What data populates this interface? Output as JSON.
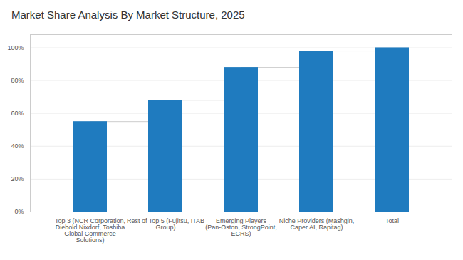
{
  "chart_data": {
    "type": "bar",
    "title": "Market Share Analysis By Market Structure, 2025",
    "categories": [
      "Top 3 (NCR Corporation,\nDiebold Nixdorf, Toshiba\nGlobal Commerce\nSolutions)",
      "Rest of Top 5 (Fujitsu, ITAB\nGroup)",
      "Emerging Players\n(Pan-Oston, StrongPoint,\nECRS)",
      "Niche Providers (Mashgin,\nCaper AI, Rapitag)",
      "Total"
    ],
    "values": [
      55,
      68,
      88,
      98,
      100
    ],
    "color": "#1f7bbf",
    "ylim": [
      0,
      108
    ],
    "yticks": [
      {
        "value": 0,
        "label": "0%"
      },
      {
        "value": 20,
        "label": "20%"
      },
      {
        "value": 40,
        "label": "40%"
      },
      {
        "value": 60,
        "label": "60%"
      },
      {
        "value": 80,
        "label": "80%"
      },
      {
        "value": 100,
        "label": "100%"
      }
    ],
    "grid": true
  }
}
